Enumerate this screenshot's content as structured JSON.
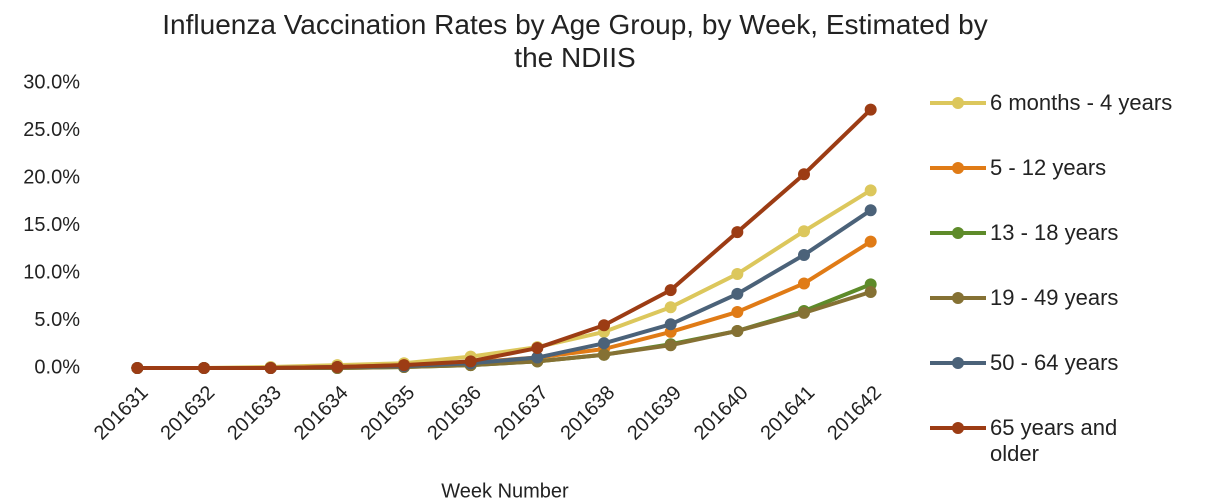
{
  "chart_data": {
    "type": "line",
    "title": "Influenza Vaccination Rates by Age Group, by Week, Estimated by the NDIIS",
    "x_label": "Week Number",
    "categories": [
      "201631",
      "201632",
      "201633",
      "201634",
      "201635",
      "201636",
      "201637",
      "201638",
      "201639",
      "201640",
      "201641",
      "201642"
    ],
    "series": [
      {
        "name": "6 months - 4 years",
        "color": "#dcc75c",
        "values": [
          0,
          0,
          0.1,
          0.3,
          0.5,
          1.2,
          2.2,
          3.8,
          6.4,
          9.9,
          14.4,
          18.7
        ]
      },
      {
        "name": "5 - 12 years",
        "color": "#e07b16",
        "values": [
          0,
          0,
          0,
          0.1,
          0.3,
          0.6,
          1.1,
          2.0,
          3.8,
          5.9,
          8.9,
          13.3
        ]
      },
      {
        "name": "13 - 18 years",
        "color": "#5e8b2a",
        "values": [
          0,
          0,
          0,
          0,
          0.1,
          0.3,
          0.7,
          1.4,
          2.5,
          3.9,
          6.0,
          8.8
        ]
      },
      {
        "name": "19 - 49 years",
        "color": "#857134",
        "values": [
          0,
          0,
          0,
          0,
          0.1,
          0.3,
          0.7,
          1.4,
          2.4,
          3.9,
          5.8,
          8.0
        ]
      },
      {
        "name": "50 - 64 years",
        "color": "#4b6279",
        "values": [
          0,
          0,
          0,
          0.1,
          0.2,
          0.5,
          1.1,
          2.6,
          4.6,
          7.8,
          11.9,
          16.6
        ]
      },
      {
        "name": "65 years and older",
        "color": "#9c3c14",
        "values": [
          0,
          0,
          0,
          0.1,
          0.3,
          0.7,
          2.1,
          4.5,
          8.2,
          14.3,
          20.4,
          27.2
        ]
      }
    ],
    "ylim": [
      0,
      30
    ],
    "yticks": [
      {
        "value": 0,
        "label": "0.0%"
      },
      {
        "value": 5,
        "label": "5.0%"
      },
      {
        "value": 10,
        "label": "10.0%"
      },
      {
        "value": 15,
        "label": "15.0%"
      },
      {
        "value": 20,
        "label": "20.0%"
      },
      {
        "value": 25,
        "label": "25.0%"
      },
      {
        "value": 30,
        "label": "30.0%"
      }
    ],
    "legend": "right"
  }
}
